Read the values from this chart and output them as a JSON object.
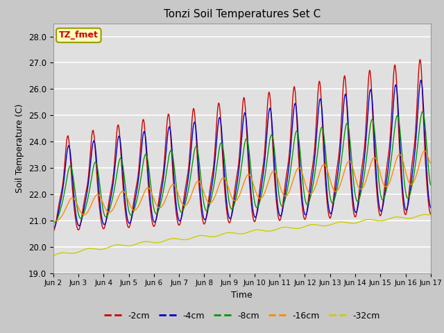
{
  "title": "Tonzi Soil Temperatures Set C",
  "xlabel": "Time",
  "ylabel": "Soil Temperature (C)",
  "ylim": [
    19.0,
    28.5
  ],
  "yticks": [
    19.0,
    20.0,
    21.0,
    22.0,
    23.0,
    24.0,
    25.0,
    26.0,
    27.0,
    28.0
  ],
  "xtick_labels": [
    "Jun 2",
    "Jun 3",
    "Jun 4",
    "Jun 5",
    "Jun 6",
    "Jun 7",
    "Jun 8",
    "Jun 9",
    "Jun 10",
    "Jun 11",
    "Jun 12",
    "Jun 13",
    "Jun 14",
    "Jun 15",
    "Jun 16",
    "Jun 17"
  ],
  "line_colors": [
    "#cc0000",
    "#0000cc",
    "#009900",
    "#ff8800",
    "#cccc00"
  ],
  "line_labels": [
    "-2cm",
    "-4cm",
    "-8cm",
    "-16cm",
    "-32cm"
  ],
  "legend_label": "TZ_fmet",
  "fig_bg_color": "#c8c8c8",
  "plot_bg_color": "#e0e0e0",
  "grid_color": "#ffffff"
}
